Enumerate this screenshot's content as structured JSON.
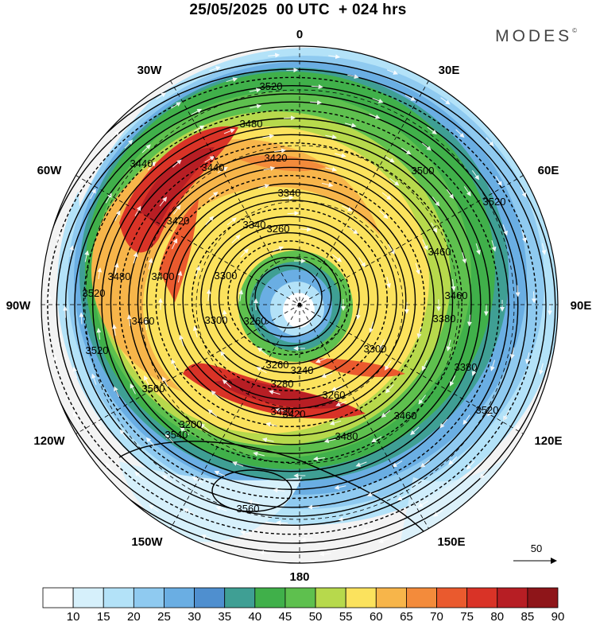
{
  "title": "25/05/2025  00 UTC  + 024 hrs",
  "brand": "MODES",
  "brand_mark": "©",
  "longitude_labels": {
    "top": "0",
    "top_left": "30W",
    "top_right": "30E",
    "upper_left": "60W",
    "upper_right": "60E",
    "left": "90W",
    "right": "90E",
    "lower_left": "120W",
    "lower_right": "120E",
    "bottom_left": "150W",
    "bottom_right": "150E",
    "bottom": "180"
  },
  "contour_labels": [
    "3520",
    "3480",
    "3440",
    "3420",
    "3500",
    "3520",
    "3340",
    "3260",
    "3340",
    "3300",
    "3420",
    "3400",
    "3480",
    "3440",
    "3460",
    "3520",
    "3460",
    "3380",
    "3300",
    "3240",
    "3280",
    "3260",
    "3420",
    "3500",
    "3520",
    "3480",
    "3540",
    "3560",
    "3260",
    "3200",
    "3420",
    "3460",
    "3260",
    "3300",
    "3380",
    "3460",
    "3520"
  ],
  "vector_reference": {
    "label": "50"
  },
  "colorbar": {
    "ticks": [
      "10",
      "15",
      "20",
      "25",
      "30",
      "35",
      "40",
      "45",
      "50",
      "55",
      "60",
      "65",
      "70",
      "75",
      "80",
      "85",
      "90"
    ],
    "colors": [
      "#ffffff",
      "#d6f0fb",
      "#b3e2f8",
      "#8fcaf0",
      "#6aaee3",
      "#4f8fcf",
      "#3f9f94",
      "#40b04a",
      "#5ec04e",
      "#b7d94c",
      "#fbe25d",
      "#f7b54a",
      "#f38b3b",
      "#ea5a2e",
      "#d93327",
      "#b71e24",
      "#8e1519"
    ]
  }
}
